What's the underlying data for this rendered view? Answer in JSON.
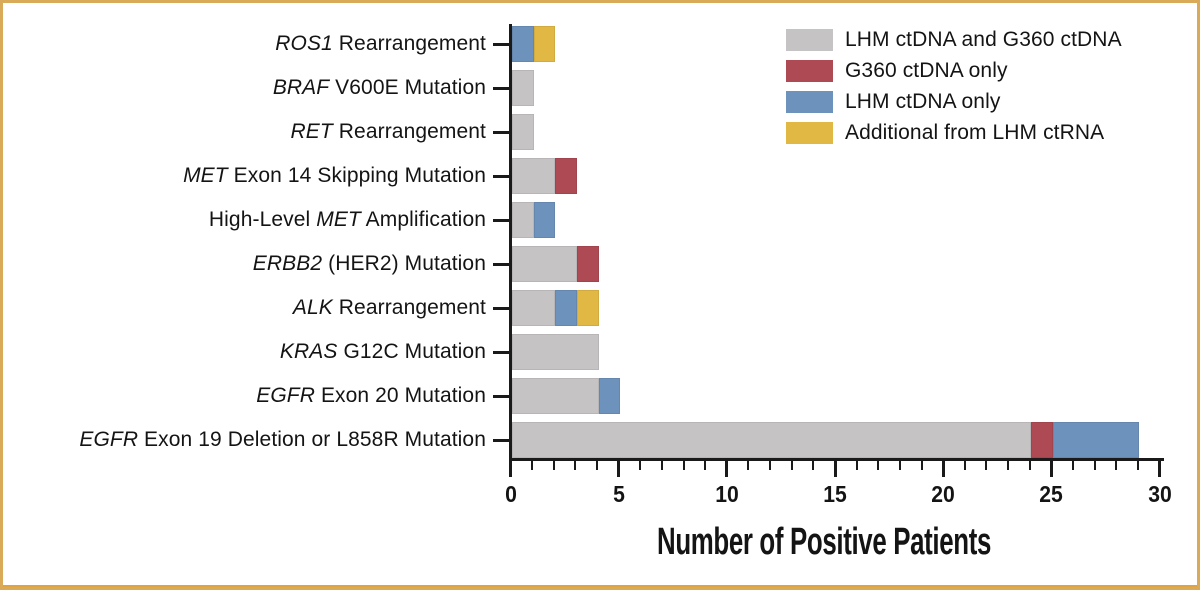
{
  "figure": {
    "border_color": "#d9ab58",
    "border_bottom_color": "#dfa441",
    "background": "#ffffff",
    "axis_color": "#1a1a1a"
  },
  "chart_data": {
    "type": "bar",
    "orientation": "horizontal",
    "stacked": true,
    "title": "",
    "xlabel": "Number of Positive Patients",
    "ylabel": "",
    "xlim": [
      0,
      30
    ],
    "xticks": [
      0,
      5,
      10,
      15,
      20,
      25,
      30
    ],
    "minor_tick_step": 1,
    "grid": false,
    "legend_position": "top-right",
    "categories": [
      {
        "plain": "ROS1 Rearrangement",
        "segments": [
          {
            "text": "ROS1",
            "italic": true
          },
          {
            "text": " Rearrangement",
            "italic": false
          }
        ]
      },
      {
        "plain": "BRAF V600E Mutation",
        "segments": [
          {
            "text": "BRAF",
            "italic": true
          },
          {
            "text": " V600E Mutation",
            "italic": false
          }
        ]
      },
      {
        "plain": "RET Rearrangement",
        "segments": [
          {
            "text": "RET",
            "italic": true
          },
          {
            "text": " Rearrangement",
            "italic": false
          }
        ]
      },
      {
        "plain": "MET Exon 14 Skipping Mutation",
        "segments": [
          {
            "text": "MET",
            "italic": true
          },
          {
            "text": " Exon 14 Skipping Mutation",
            "italic": false
          }
        ]
      },
      {
        "plain": "High-Level MET Amplification",
        "segments": [
          {
            "text": "High-Level ",
            "italic": false
          },
          {
            "text": "MET",
            "italic": true
          },
          {
            "text": " Amplification",
            "italic": false
          }
        ]
      },
      {
        "plain": "ERBB2 (HER2) Mutation",
        "segments": [
          {
            "text": "ERBB2",
            "italic": true
          },
          {
            "text": " (HER2) Mutation",
            "italic": false
          }
        ]
      },
      {
        "plain": "ALK Rearrangement",
        "segments": [
          {
            "text": "ALK",
            "italic": true
          },
          {
            "text": " Rearrangement",
            "italic": false
          }
        ]
      },
      {
        "plain": "KRAS G12C Mutation",
        "segments": [
          {
            "text": "KRAS",
            "italic": true
          },
          {
            "text": " G12C Mutation",
            "italic": false
          }
        ]
      },
      {
        "plain": "EGFR Exon 20 Mutation",
        "segments": [
          {
            "text": "EGFR",
            "italic": true
          },
          {
            "text": " Exon 20 Mutation",
            "italic": false
          }
        ]
      },
      {
        "plain": "EGFR Exon 19 Deletion or L858R Mutation",
        "segments": [
          {
            "text": "EGFR",
            "italic": true
          },
          {
            "text": " Exon 19 Deletion or L858R Mutation",
            "italic": false
          }
        ]
      }
    ],
    "series": [
      {
        "name": "LHM ctDNA and G360 ctDNA",
        "color": "#c6c3c4",
        "values": [
          0,
          1,
          1,
          2,
          1,
          3,
          2,
          4,
          4,
          24
        ]
      },
      {
        "name": "G360 ctDNA only",
        "color": "#ae4a54",
        "values": [
          0,
          0,
          0,
          1,
          0,
          1,
          0,
          0,
          0,
          1
        ]
      },
      {
        "name": "LHM ctDNA only",
        "color": "#6d92bc",
        "values": [
          1,
          0,
          0,
          0,
          1,
          0,
          1,
          0,
          1,
          4
        ]
      },
      {
        "name": "Additional from LHM ctRNA",
        "color": "#e2b845",
        "values": [
          1,
          0,
          0,
          0,
          0,
          0,
          1,
          0,
          0,
          0
        ]
      }
    ]
  }
}
